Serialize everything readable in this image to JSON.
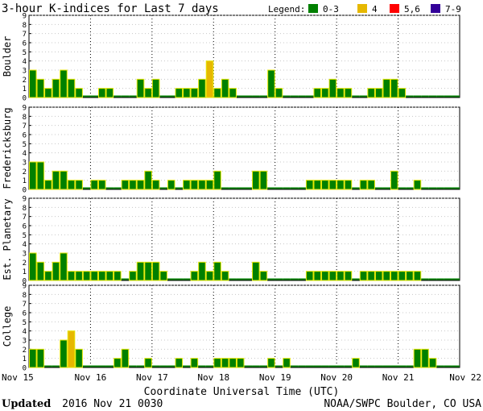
{
  "chart_data": {
    "type": "bar",
    "title": "3-hour K-indices for Last 7 days",
    "legend_label": "Legend:",
    "legend": [
      {
        "name": "0-3",
        "color": "#008000"
      },
      {
        "name": "4",
        "color": "#e6b800"
      },
      {
        "name": "5,6",
        "color": "#ff0000"
      },
      {
        "name": "7-9",
        "color": "#330099"
      }
    ],
    "bar_outline_color": "#e6e600",
    "ylim": [
      0,
      9
    ],
    "yticks": [
      "0",
      "1",
      "2",
      "3",
      "4",
      "5",
      "6",
      "7",
      "8",
      "9"
    ],
    "xlabel": "Coordinate Universal Time (UTC)",
    "xtick_labels": [
      "Nov 15",
      "Nov 16",
      "Nov 17",
      "Nov 18",
      "Nov 19",
      "Nov 20",
      "Nov 21",
      "Nov 22"
    ],
    "slots_per_day": 8,
    "total_slots": 56,
    "grid": "dotted",
    "series": [
      {
        "name": "Boulder",
        "values": [
          3,
          2,
          1,
          2,
          3,
          2,
          1,
          0,
          0,
          1,
          1,
          0,
          0,
          0,
          2,
          1,
          2,
          0,
          0,
          1,
          1,
          1,
          2,
          4,
          1,
          2,
          1,
          0,
          0,
          0,
          0,
          3,
          1,
          0,
          0,
          0,
          0,
          1,
          1,
          2,
          1,
          1,
          0,
          0,
          1,
          1,
          2,
          2,
          1,
          0,
          0,
          0,
          0,
          0,
          0,
          0
        ]
      },
      {
        "name": "Fredericksburg",
        "values": [
          3,
          3,
          1,
          2,
          2,
          1,
          1,
          0,
          1,
          1,
          0,
          0,
          1,
          1,
          1,
          2,
          1,
          0,
          1,
          0,
          1,
          1,
          1,
          1,
          2,
          0,
          0,
          0,
          0,
          2,
          2,
          0,
          0,
          0,
          0,
          0,
          1,
          1,
          1,
          1,
          1,
          1,
          0,
          1,
          1,
          0,
          0,
          2,
          0,
          0,
          1,
          0,
          0,
          0,
          0,
          0
        ]
      },
      {
        "name": "Est. Planetary",
        "values": [
          3,
          2,
          1,
          2,
          3,
          1,
          1,
          1,
          1,
          1,
          1,
          1,
          0,
          1,
          2,
          2,
          2,
          1,
          0,
          0,
          0,
          1,
          2,
          1,
          2,
          1,
          0,
          0,
          0,
          2,
          1,
          0,
          0,
          0,
          0,
          0,
          1,
          1,
          1,
          1,
          1,
          1,
          0,
          1,
          1,
          1,
          1,
          1,
          1,
          1,
          1,
          0,
          0,
          0,
          0,
          0
        ]
      },
      {
        "name": "College",
        "values": [
          2,
          2,
          0,
          0,
          3,
          4,
          2,
          0,
          0,
          0,
          0,
          1,
          2,
          0,
          0,
          1,
          0,
          0,
          0,
          1,
          0,
          1,
          0,
          0,
          1,
          1,
          1,
          1,
          0,
          0,
          0,
          1,
          0,
          1,
          0,
          0,
          0,
          0,
          0,
          0,
          0,
          0,
          1,
          0,
          0,
          0,
          0,
          0,
          0,
          0,
          2,
          2,
          1,
          0,
          0,
          0
        ]
      }
    ]
  },
  "footer": {
    "updated_label": "Updated",
    "updated_value": "2016 Nov 21 0030",
    "credit": "NOAA/SWPC Boulder, CO USA"
  }
}
